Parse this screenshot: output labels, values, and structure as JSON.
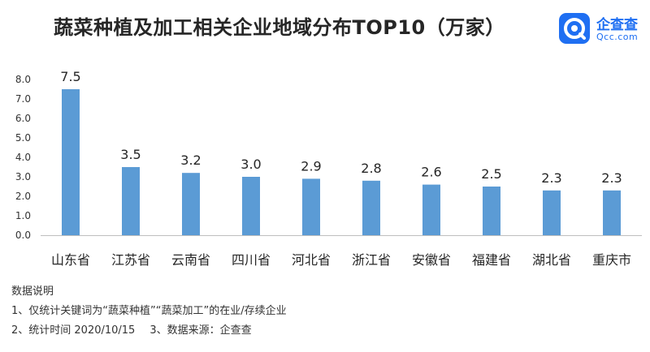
{
  "header": {
    "title": "蔬菜种植及加工相关企业地域分布TOP10（万家）"
  },
  "logo": {
    "icon": "qichacha-logo-icon",
    "name": "企查查",
    "domain": "Qcc.com",
    "color": "#1f6ff2"
  },
  "chart_data": {
    "type": "bar",
    "title": "蔬菜种植及加工相关企业地域分布TOP10（万家）",
    "unit": "万家",
    "categories": [
      "山东省",
      "江苏省",
      "云南省",
      "四川省",
      "河北省",
      "浙江省",
      "安徽省",
      "福建省",
      "湖北省",
      "重庆市"
    ],
    "values": [
      7.5,
      3.5,
      3.2,
      3.0,
      2.9,
      2.8,
      2.6,
      2.5,
      2.3,
      2.3
    ],
    "value_labels": [
      "7.5",
      "3.5",
      "3.2",
      "3.0",
      "2.9",
      "2.8",
      "2.6",
      "2.5",
      "2.3",
      "2.3"
    ],
    "ylim": [
      0,
      8
    ],
    "yticks": [
      "0.0",
      "1.0",
      "2.0",
      "3.0",
      "4.0",
      "5.0",
      "6.0",
      "7.0",
      "8.0"
    ],
    "bar_color": "#5b9bd5",
    "grid": false,
    "xlabel": "",
    "ylabel": ""
  },
  "notes": {
    "heading": "数据说明",
    "line1": "1、仅统计关键词为“蔬菜种植”“蔬菜加工”的在业/存续企业",
    "line2a": "2、统计时间 2020/10/15",
    "line2b": "3、数据来源：企查查"
  }
}
